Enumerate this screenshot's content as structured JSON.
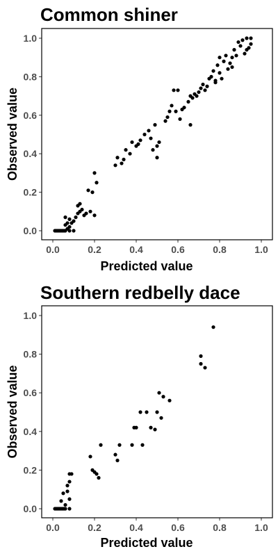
{
  "chart_data": [
    {
      "type": "scatter",
      "title": "Common shiner",
      "xlabel": "Predicted value",
      "ylabel": "Observed value",
      "xlim": [
        0,
        1
      ],
      "ylim": [
        0,
        1
      ],
      "xticks": [
        "0.0",
        "0.2",
        "0.4",
        "0.6",
        "0.8",
        "1.0"
      ],
      "yticks": [
        "0.0",
        "0.2",
        "0.4",
        "0.6",
        "0.8",
        "1.0"
      ],
      "grid": false,
      "points": [
        [
          0.01,
          0
        ],
        [
          0.015,
          0
        ],
        [
          0.02,
          0
        ],
        [
          0.025,
          0
        ],
        [
          0.03,
          0
        ],
        [
          0.035,
          0
        ],
        [
          0.04,
          0
        ],
        [
          0.045,
          0
        ],
        [
          0.05,
          0
        ],
        [
          0.055,
          0
        ],
        [
          0.06,
          0
        ],
        [
          0.08,
          0
        ],
        [
          0.1,
          0
        ],
        [
          0.07,
          0.01
        ],
        [
          0.08,
          0.02
        ],
        [
          0.06,
          0.03
        ],
        [
          0.07,
          0.04
        ],
        [
          0.09,
          0.04
        ],
        [
          0.06,
          0.07
        ],
        [
          0.08,
          0.06
        ],
        [
          0.1,
          0.05
        ],
        [
          0.11,
          0.07
        ],
        [
          0.12,
          0.09
        ],
        [
          0.13,
          0.1
        ],
        [
          0.14,
          0.11
        ],
        [
          0.12,
          0.13
        ],
        [
          0.13,
          0.14
        ],
        [
          0.15,
          0.08
        ],
        [
          0.16,
          0.09
        ],
        [
          0.18,
          0.1
        ],
        [
          0.2,
          0.08
        ],
        [
          0.17,
          0.21
        ],
        [
          0.19,
          0.2
        ],
        [
          0.21,
          0.25
        ],
        [
          0.2,
          0.3
        ],
        [
          0.3,
          0.34
        ],
        [
          0.31,
          0.38
        ],
        [
          0.33,
          0.35
        ],
        [
          0.34,
          0.37
        ],
        [
          0.35,
          0.42
        ],
        [
          0.37,
          0.4
        ],
        [
          0.38,
          0.46
        ],
        [
          0.4,
          0.44
        ],
        [
          0.41,
          0.45
        ],
        [
          0.42,
          0.47
        ],
        [
          0.44,
          0.5
        ],
        [
          0.46,
          0.52
        ],
        [
          0.47,
          0.48
        ],
        [
          0.49,
          0.55
        ],
        [
          0.48,
          0.42
        ],
        [
          0.5,
          0.44
        ],
        [
          0.51,
          0.46
        ],
        [
          0.5,
          0.38
        ],
        [
          0.54,
          0.57
        ],
        [
          0.55,
          0.59
        ],
        [
          0.56,
          0.62
        ],
        [
          0.57,
          0.65
        ],
        [
          0.58,
          0.73
        ],
        [
          0.59,
          0.62
        ],
        [
          0.6,
          0.73
        ],
        [
          0.61,
          0.58
        ],
        [
          0.62,
          0.63
        ],
        [
          0.63,
          0.64
        ],
        [
          0.65,
          0.67
        ],
        [
          0.66,
          0.7
        ],
        [
          0.67,
          0.69
        ],
        [
          0.68,
          0.71
        ],
        [
          0.66,
          0.55
        ],
        [
          0.69,
          0.7
        ],
        [
          0.7,
          0.72
        ],
        [
          0.71,
          0.74
        ],
        [
          0.72,
          0.76
        ],
        [
          0.73,
          0.73
        ],
        [
          0.74,
          0.75
        ],
        [
          0.75,
          0.79
        ],
        [
          0.76,
          0.8
        ],
        [
          0.77,
          0.83
        ],
        [
          0.78,
          0.77
        ],
        [
          0.79,
          0.86
        ],
        [
          0.8,
          0.82
        ],
        [
          0.81,
          0.79
        ],
        [
          0.82,
          0.88
        ],
        [
          0.83,
          0.91
        ],
        [
          0.84,
          0.84
        ],
        [
          0.85,
          0.87
        ],
        [
          0.86,
          0.9
        ],
        [
          0.87,
          0.94
        ],
        [
          0.88,
          0.91
        ],
        [
          0.89,
          0.98
        ],
        [
          0.9,
          0.96
        ],
        [
          0.91,
          0.99
        ],
        [
          0.92,
          0.92
        ],
        [
          0.93,
          0.94
        ],
        [
          0.94,
          0.95
        ],
        [
          0.95,
          0.97
        ],
        [
          0.95,
          1.0
        ],
        [
          0.78,
          0.78
        ],
        [
          0.8,
          0.9
        ],
        [
          0.86,
          0.85
        ],
        [
          0.93,
          1.0
        ]
      ]
    },
    {
      "type": "scatter",
      "title": "Southern redbelly dace",
      "xlabel": "Predicted value",
      "ylabel": "Observed value",
      "xlim": [
        0,
        1
      ],
      "ylim": [
        0,
        1
      ],
      "xticks": [
        "0.0",
        "0.2",
        "0.4",
        "0.6",
        "0.8",
        "1.0"
      ],
      "yticks": [
        "0.0",
        "0.2",
        "0.4",
        "0.6",
        "0.8",
        "1.0"
      ],
      "grid": false,
      "points": [
        [
          0.01,
          0
        ],
        [
          0.015,
          0
        ],
        [
          0.02,
          0
        ],
        [
          0.025,
          0
        ],
        [
          0.03,
          0
        ],
        [
          0.035,
          0
        ],
        [
          0.04,
          0
        ],
        [
          0.045,
          0
        ],
        [
          0.05,
          0
        ],
        [
          0.055,
          0
        ],
        [
          0.06,
          0
        ],
        [
          0.08,
          0
        ],
        [
          0.04,
          0.04
        ],
        [
          0.05,
          0.08
        ],
        [
          0.07,
          0.09
        ],
        [
          0.07,
          0.12
        ],
        [
          0.08,
          0.14
        ],
        [
          0.08,
          0.18
        ],
        [
          0.09,
          0.18
        ],
        [
          0.06,
          0.02
        ],
        [
          0.08,
          0.05
        ],
        [
          0.18,
          0.27
        ],
        [
          0.19,
          0.2
        ],
        [
          0.2,
          0.19
        ],
        [
          0.21,
          0.18
        ],
        [
          0.22,
          0.16
        ],
        [
          0.23,
          0.33
        ],
        [
          0.3,
          0.28
        ],
        [
          0.31,
          0.25
        ],
        [
          0.32,
          0.33
        ],
        [
          0.38,
          0.33
        ],
        [
          0.39,
          0.42
        ],
        [
          0.4,
          0.42
        ],
        [
          0.42,
          0.5
        ],
        [
          0.43,
          0.33
        ],
        [
          0.45,
          0.5
        ],
        [
          0.47,
          0.42
        ],
        [
          0.49,
          0.41
        ],
        [
          0.5,
          0.5
        ],
        [
          0.51,
          0.6
        ],
        [
          0.52,
          0.47
        ],
        [
          0.53,
          0.58
        ],
        [
          0.56,
          0.56
        ],
        [
          0.71,
          0.79
        ],
        [
          0.71,
          0.75
        ],
        [
          0.73,
          0.73
        ],
        [
          0.77,
          0.94
        ]
      ]
    }
  ]
}
